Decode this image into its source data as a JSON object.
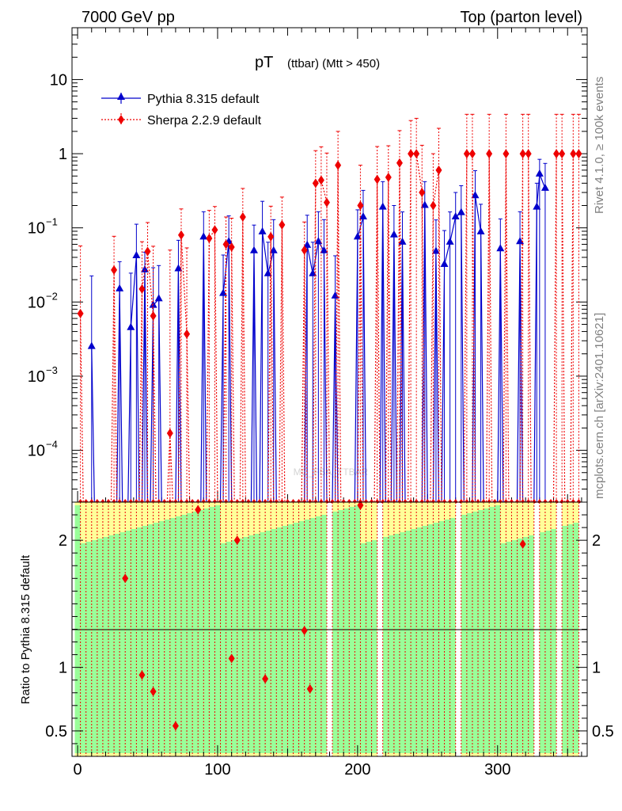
{
  "header": {
    "left": "7000 GeV pp",
    "right": "Top (parton level)"
  },
  "side_labels": {
    "rivet": "Rivet 4.1.0, ≥ 100k events",
    "mcplots": "mcplots.cern.ch [arXiv:2401.10621]"
  },
  "watermark": "MC_FBA_TTBAR",
  "chart_data": [
    {
      "type": "line",
      "panel": "main",
      "title_main": "pT",
      "title_sub": "(ttbar) (Mtt > 450)",
      "yscale": "log",
      "ylim": [
        2e-05,
        50
      ],
      "xlim": [
        -4,
        364
      ],
      "y_ticks": [
        {
          "value": 10,
          "label": "10"
        },
        {
          "value": 1,
          "label": "1"
        },
        {
          "value": 0.1,
          "base": "10",
          "exp": "−1"
        },
        {
          "value": 0.01,
          "base": "10",
          "exp": "−2"
        },
        {
          "value": 0.001,
          "base": "10",
          "exp": "−3"
        },
        {
          "value": 0.0001,
          "base": "10",
          "exp": "−4"
        }
      ],
      "legend": [
        "Pythia 8.315 default",
        "Sherpa 2.2.9 default"
      ],
      "series": [
        {
          "name": "Pythia 8.315 default",
          "color": "#0000cc",
          "marker": "triangle",
          "x": [
            10,
            30,
            38,
            42,
            48,
            54,
            58,
            72,
            90,
            104,
            108,
            126,
            132,
            136,
            140,
            164,
            168,
            172,
            176,
            184,
            200,
            204,
            218,
            226,
            232,
            248,
            256,
            262,
            266,
            270,
            274,
            284,
            288,
            302,
            316,
            328,
            330,
            334
          ],
          "y": [
            0.0025,
            0.015,
            0.0045,
            0.042,
            0.027,
            0.009,
            0.011,
            0.028,
            0.075,
            0.013,
            0.065,
            0.049,
            0.088,
            0.024,
            0.049,
            0.058,
            0.024,
            0.065,
            0.049,
            0.012,
            0.075,
            0.14,
            0.19,
            0.08,
            0.064,
            0.2,
            0.048,
            0.032,
            0.064,
            0.14,
            0.16,
            0.27,
            0.088,
            0.052,
            0.065,
            0.19,
            0.53,
            0.34
          ],
          "err_up": [
            0.02,
            0.02,
            0.02,
            0.07,
            0.02,
            0.02,
            0.02,
            0.04,
            0.09,
            0.03,
            0.08,
            0.06,
            0.14,
            0.04,
            0.08,
            0.09,
            0.04,
            0.1,
            0.08,
            0.03,
            0.1,
            0.18,
            0.23,
            0.12,
            0.1,
            0.22,
            0.08,
            0.06,
            0.1,
            0.16,
            0.21,
            0.32,
            0.12,
            0.08,
            0.1,
            0.21,
            0.31,
            0.4
          ]
        },
        {
          "name": "Sherpa 2.2.9 default",
          "color": "#ee0000",
          "marker": "diamond",
          "x": [
            2,
            26,
            46,
            50,
            54,
            66,
            74,
            78,
            94,
            98,
            106,
            110,
            118,
            138,
            146,
            162,
            170,
            174,
            178,
            186,
            202,
            214,
            222,
            230,
            238,
            242,
            246,
            254,
            258,
            278,
            282,
            294,
            306,
            318,
            322,
            342,
            346,
            354,
            358
          ],
          "y": [
            0.007,
            0.027,
            0.015,
            0.048,
            0.0065,
            0.00017,
            0.08,
            0.0037,
            0.072,
            0.094,
            0.06,
            0.055,
            0.14,
            0.076,
            0.11,
            0.05,
            0.4,
            0.44,
            0.22,
            0.7,
            0.2,
            0.45,
            0.48,
            0.75,
            1,
            1,
            0.3,
            0.2,
            0.6,
            1,
            1,
            1,
            1,
            1,
            1,
            1,
            1,
            1,
            1
          ],
          "err_up": [
            0.05,
            0.05,
            0.05,
            0.07,
            0.05,
            0.05,
            0.1,
            0.05,
            0.1,
            0.1,
            0.08,
            0.08,
            0.2,
            0.12,
            0.15,
            0.07,
            0.7,
            0.8,
            0.8,
            1.3,
            0.5,
            0.8,
            0.8,
            1.3,
            1.8,
            2,
            1,
            0.8,
            1.6,
            2.4,
            2.4,
            2.4,
            2.4,
            2.4,
            2.4,
            2.4,
            2.4,
            2.4,
            2.4
          ]
        }
      ]
    },
    {
      "type": "line",
      "panel": "ratio",
      "ylabel": "Ratio to Pythia 8.315 default",
      "ylim": [
        0.3,
        2.3
      ],
      "xlim": [
        -4,
        364
      ],
      "x_ticks": [
        0,
        100,
        200,
        300
      ],
      "y_ticks_left": [
        {
          "value": 0.5,
          "label": "0.5"
        },
        {
          "value": 1,
          "label": "1"
        },
        {
          "value": 2,
          "label": "2"
        }
      ],
      "y_ticks_right": [
        {
          "value": 0.5,
          "label": "0.5"
        },
        {
          "value": 1,
          "label": "1"
        },
        {
          "value": 2,
          "label": "2"
        }
      ],
      "reference_line": 1,
      "band_colors": {
        "stat": "#99ff99",
        "syst": "#ffff99"
      },
      "series": [
        {
          "name": "Sherpa 2.2.9 default",
          "color": "#ee0000",
          "marker": "diamond",
          "x": [
            34,
            46,
            54,
            70,
            86,
            110,
            114,
            134,
            162,
            166,
            202,
            318
          ],
          "y": [
            1.7,
            0.94,
            0.81,
            0.54,
            2.24,
            1.07,
            2.0,
            0.91,
            1.29,
            0.83,
            2.3,
            1.97
          ]
        }
      ]
    }
  ]
}
